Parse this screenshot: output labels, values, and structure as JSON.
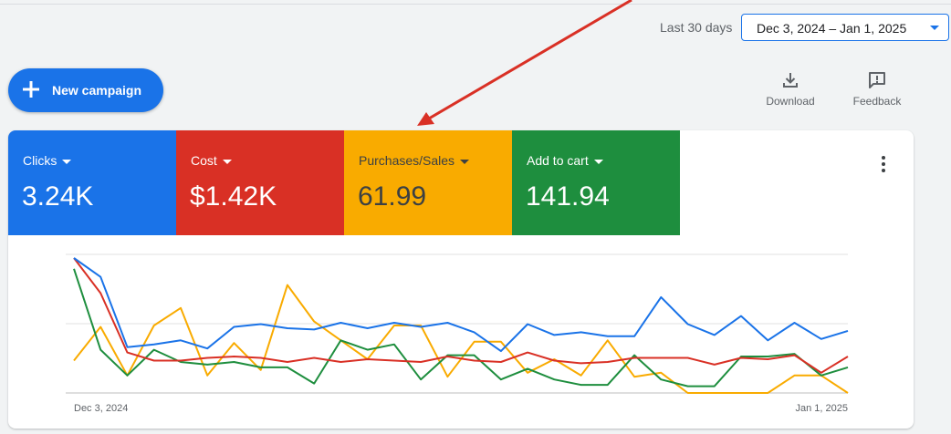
{
  "header": {
    "range_label": "Last 30 days",
    "date_range": "Dec 3, 2024 – Jan 1, 2025"
  },
  "actions": {
    "new_campaign": "New campaign",
    "download": "Download",
    "feedback": "Feedback"
  },
  "icons": {
    "new_campaign": "plus-icon",
    "download": "download-icon",
    "feedback": "feedback-icon",
    "more": "more-vert-icon",
    "metric_dropdown": "caret-down-icon"
  },
  "metrics": [
    {
      "name": "Clicks",
      "value": "3.24K",
      "color": "#1a73e8"
    },
    {
      "name": "Cost",
      "value": "$1.42K",
      "color": "#d93025"
    },
    {
      "name": "Purchases/Sales",
      "value": "61.99",
      "color": "#f9ab00"
    },
    {
      "name": "Add to cart",
      "value": "141.94",
      "color": "#1e8e3e"
    }
  ],
  "annotation": {
    "color": "#d93025"
  },
  "chart_data": {
    "type": "line",
    "x_start": "Dec 3, 2024",
    "x_end": "Jan 1, 2025",
    "grid": true,
    "series": [
      {
        "name": "Clicks",
        "color": "#1a73e8",
        "values": [
          1.0,
          0.86,
          0.34,
          0.36,
          0.39,
          0.33,
          0.49,
          0.51,
          0.48,
          0.47,
          0.52,
          0.48,
          0.52,
          0.49,
          0.52,
          0.45,
          0.31,
          0.51,
          0.43,
          0.45,
          0.42,
          0.42,
          0.71,
          0.51,
          0.43,
          0.57,
          0.39,
          0.52,
          0.4,
          0.46
        ]
      },
      {
        "name": "Cost",
        "color": "#d93025",
        "values": [
          1.0,
          0.74,
          0.3,
          0.24,
          0.24,
          0.26,
          0.27,
          0.26,
          0.23,
          0.26,
          0.23,
          0.25,
          0.24,
          0.23,
          0.27,
          0.24,
          0.23,
          0.3,
          0.24,
          0.22,
          0.23,
          0.26,
          0.26,
          0.26,
          0.21,
          0.26,
          0.25,
          0.28,
          0.15,
          0.27
        ]
      },
      {
        "name": "Purchases/Sales",
        "color": "#f9ab00",
        "values": [
          0.24,
          0.49,
          0.13,
          0.5,
          0.63,
          0.13,
          0.37,
          0.17,
          0.8,
          0.53,
          0.39,
          0.25,
          0.5,
          0.5,
          0.12,
          0.38,
          0.38,
          0.15,
          0.25,
          0.13,
          0.39,
          0.12,
          0.15,
          0.0,
          0.0,
          0.0,
          0.0,
          0.13,
          0.13,
          0.0
        ]
      },
      {
        "name": "Add to cart",
        "color": "#1e8e3e",
        "values": [
          0.92,
          0.32,
          0.13,
          0.32,
          0.23,
          0.21,
          0.23,
          0.19,
          0.19,
          0.07,
          0.39,
          0.32,
          0.36,
          0.1,
          0.28,
          0.28,
          0.1,
          0.18,
          0.1,
          0.06,
          0.06,
          0.28,
          0.1,
          0.05,
          0.05,
          0.27,
          0.27,
          0.29,
          0.13,
          0.19
        ]
      }
    ]
  }
}
